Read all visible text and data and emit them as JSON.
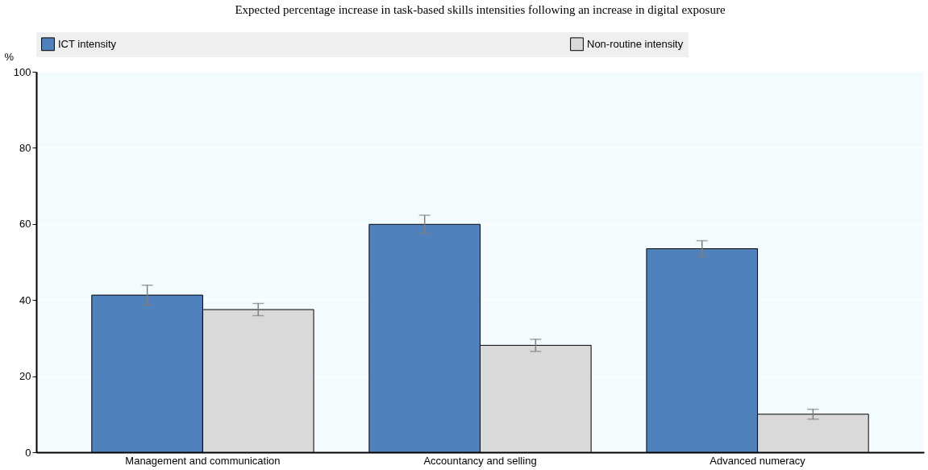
{
  "chart_data": {
    "type": "bar",
    "title": "Expected percentage increase in task-based skills intensities following an increase in digital exposure",
    "ylabel": "%",
    "categories": [
      "Management and communication",
      "Accountancy and selling",
      "Advanced numeracy"
    ],
    "series": [
      {
        "name": "ICT intensity",
        "color": "#4f81bd",
        "values": [
          41.3,
          59.9,
          53.5
        ],
        "errors": [
          2.6,
          2.4,
          2.1
        ]
      },
      {
        "name": "Non-routine intensity",
        "color": "#d9d9d9",
        "values": [
          37.5,
          28.1,
          10.0
        ],
        "errors": [
          1.6,
          1.6,
          1.3
        ]
      }
    ],
    "ylim": [
      0,
      100
    ],
    "yticks": [
      0,
      20,
      40,
      60,
      80,
      100
    ],
    "grid": "y",
    "legend": "top"
  }
}
